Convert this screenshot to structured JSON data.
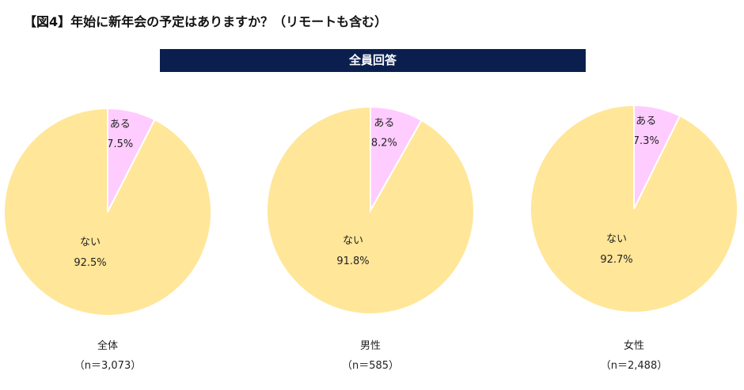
{
  "title": "【図4】年始に新年会の予定はありますか？（リモートも含む）",
  "banner_label": "全員回答",
  "colors": {
    "banner_bg": "#0b1f4f",
    "aru": "#ffccff",
    "nai": "#ffe699",
    "slice_border": "#ffffff",
    "text": "#222222"
  },
  "chart_data": [
    {
      "type": "pie",
      "group": "全体",
      "n_label": "（n＝3,073）",
      "slices": [
        {
          "label": "ある",
          "value": 7.5,
          "value_label": "7.5%"
        },
        {
          "label": "ない",
          "value": 92.5,
          "value_label": "92.5%"
        }
      ]
    },
    {
      "type": "pie",
      "group": "男性",
      "n_label": "（n＝585）",
      "slices": [
        {
          "label": "ある",
          "value": 8.2,
          "value_label": "8.2%"
        },
        {
          "label": "ない",
          "value": 91.8,
          "value_label": "91.8%"
        }
      ]
    },
    {
      "type": "pie",
      "group": "女性",
      "n_label": "（n＝2,488）",
      "slices": [
        {
          "label": "ある",
          "value": 7.3,
          "value_label": "7.3%"
        },
        {
          "label": "ない",
          "value": 92.7,
          "value_label": "92.7%"
        }
      ]
    }
  ]
}
